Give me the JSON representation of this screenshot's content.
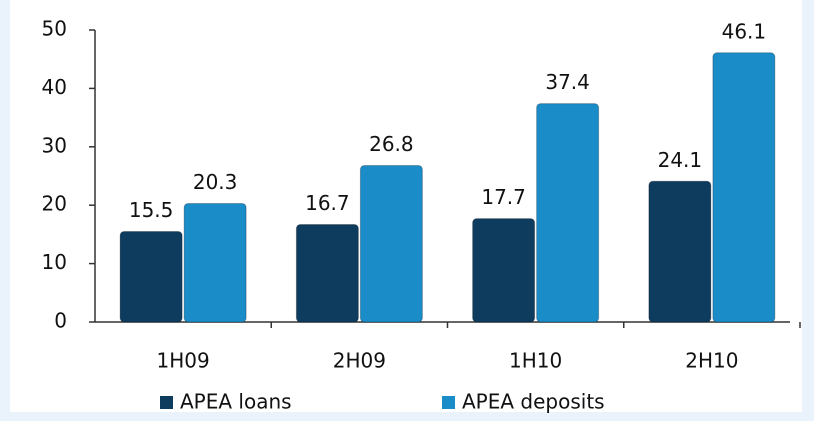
{
  "chart_data": {
    "type": "bar",
    "categories": [
      "1H09",
      "2H09",
      "1H10",
      "2H10"
    ],
    "series": [
      {
        "name": "APEA loans",
        "color": "#0d3c5e",
        "values": [
          15.5,
          16.7,
          17.7,
          24.1
        ]
      },
      {
        "name": "APEA deposits",
        "color": "#1a8cc8",
        "values": [
          20.3,
          26.8,
          37.4,
          46.1
        ]
      }
    ],
    "ylim": [
      0,
      50
    ],
    "yticks": [
      0,
      10,
      20,
      30,
      40,
      50
    ],
    "legend": "bottom"
  }
}
